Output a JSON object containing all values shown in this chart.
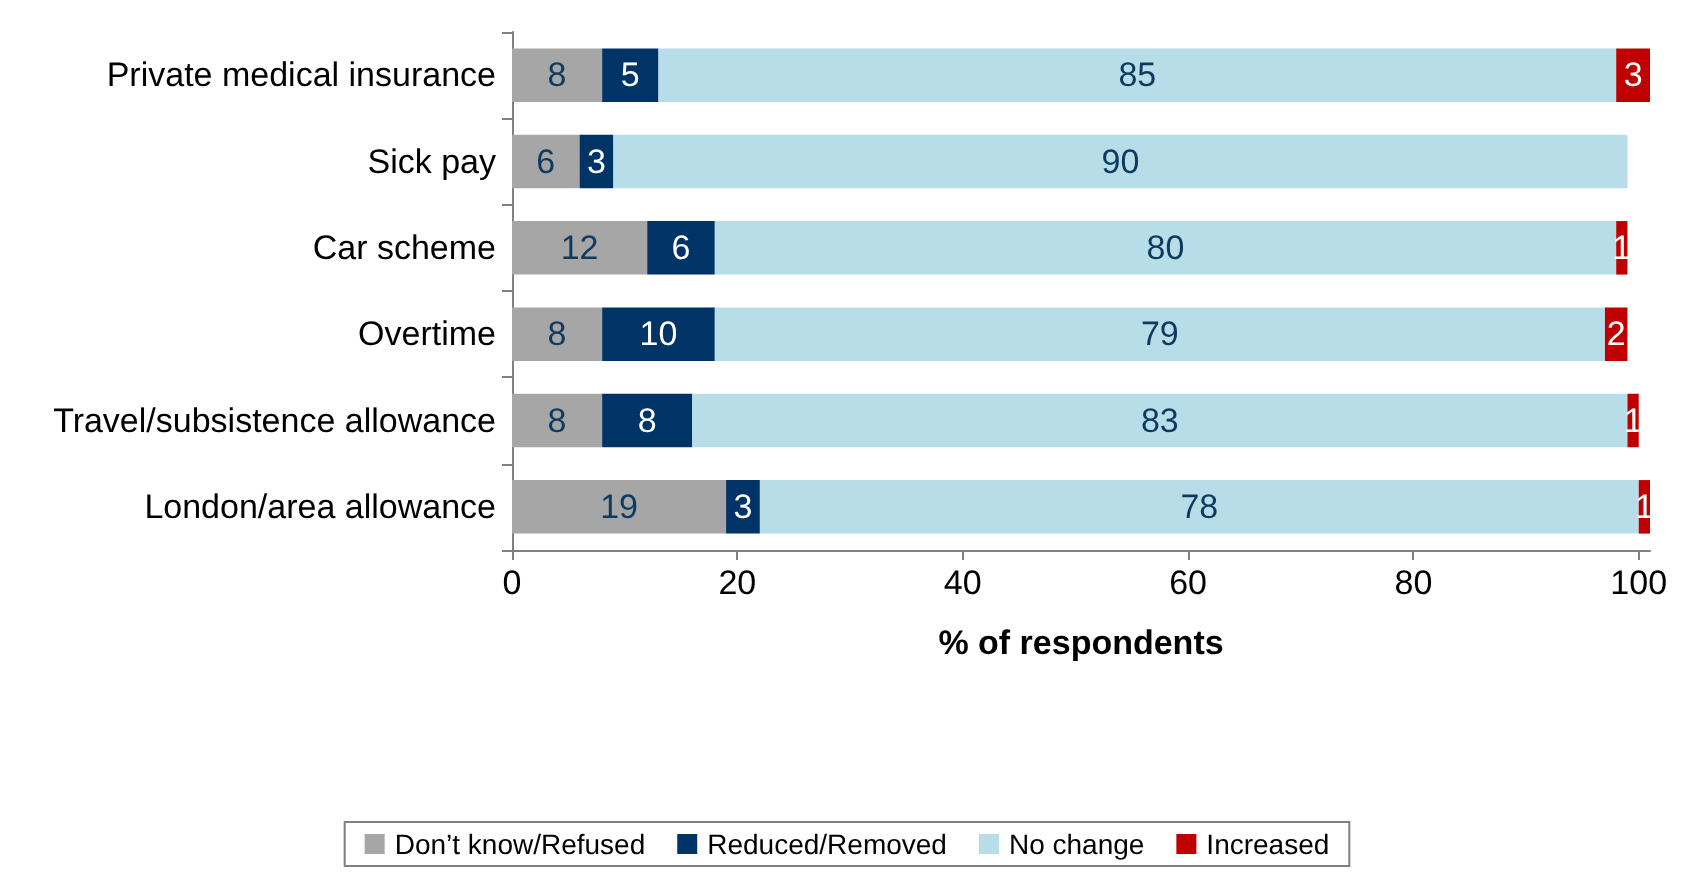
{
  "chart_data": {
    "type": "bar",
    "orientation": "horizontal",
    "stacked": true,
    "xlabel": "% of respondents",
    "categories": [
      "Private medical insurance",
      "Sick pay",
      "Car scheme",
      "Overtime",
      "Travel/subsistence allowance",
      "London/area allowance"
    ],
    "series": [
      {
        "name": "Don’t know/Refused",
        "color": "#a6a6a6",
        "values": [
          8,
          6,
          12,
          8,
          8,
          19
        ]
      },
      {
        "name": "Reduced/Removed",
        "color": "#003366",
        "values": [
          5,
          3,
          6,
          10,
          8,
          3
        ]
      },
      {
        "name": "No change",
        "color": "#b7dde8",
        "values": [
          85,
          90,
          80,
          79,
          83,
          78
        ]
      },
      {
        "name": "Increased",
        "color": "#c00000",
        "values": [
          3,
          null,
          1,
          2,
          1,
          1
        ]
      }
    ],
    "xlim": [
      0,
      101
    ],
    "xticks": [
      0,
      20,
      40,
      60,
      80,
      100
    ],
    "data_labels": true,
    "grid": false,
    "legend": "bottom"
  }
}
